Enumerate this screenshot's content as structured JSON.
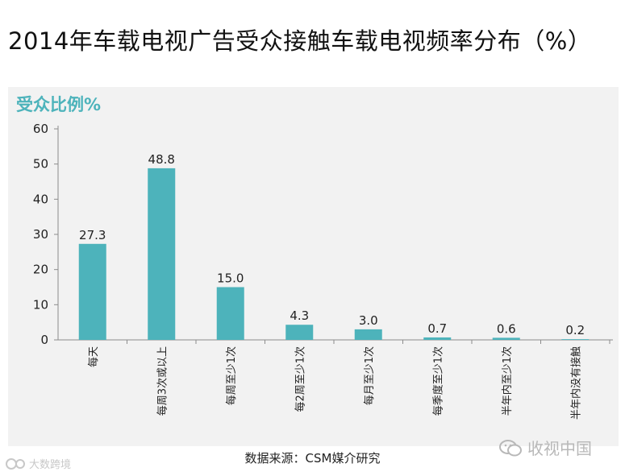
{
  "title": "2014年车载电视广告受众接触车载电视频率分布（%）",
  "chart_data": {
    "type": "bar",
    "ylabel": "受众比例%",
    "categories": [
      "每天",
      "每周3次或以上",
      "每周至少1次",
      "每2周至少1次",
      "每月至少1次",
      "每季度至少1次",
      "半年内至少1次",
      "半年内没有接触"
    ],
    "values": [
      27.3,
      48.8,
      15.0,
      4.3,
      3.0,
      0.7,
      0.6,
      0.2
    ],
    "value_labels": [
      "27.3",
      "48.8",
      "15.0",
      "4.3",
      "3.0",
      "0.7",
      "0.6",
      "0.2"
    ],
    "yticks": [
      0,
      10,
      20,
      30,
      40,
      50,
      60
    ],
    "ylim": [
      0,
      60
    ],
    "grid": false,
    "colors": {
      "bar": "#4db3bb",
      "ylabel": "#4db3bb",
      "axis": "#8c8c8c"
    }
  },
  "source": "数据来源：CSM媒介研究",
  "watermarks": {
    "left": "大数跨境",
    "right": "收视中国"
  }
}
